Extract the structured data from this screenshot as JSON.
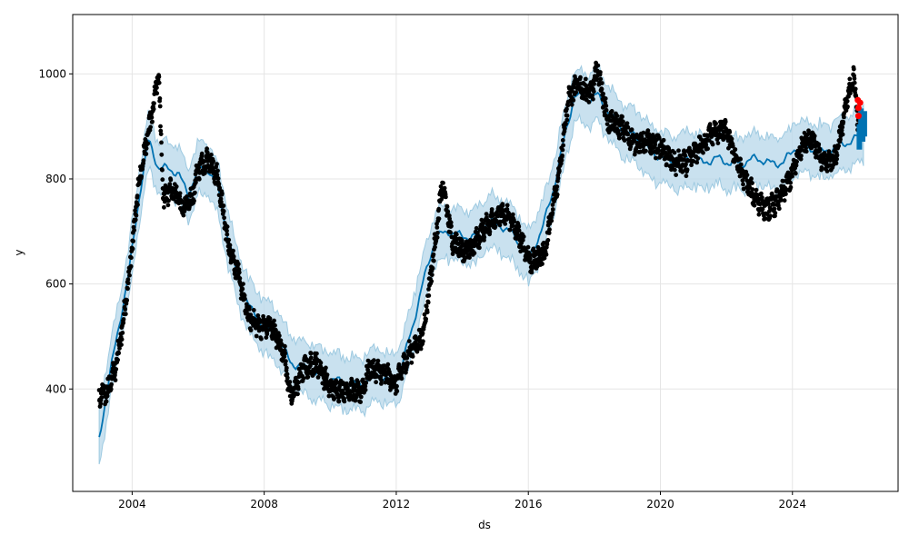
{
  "chart_data": {
    "type": "line",
    "title": "",
    "xlabel": "ds",
    "ylabel": "y",
    "xlim": [
      2002.2,
      2027.2
    ],
    "ylim": [
      205,
      1113
    ],
    "x_ticks": [
      2004,
      2008,
      2012,
      2016,
      2020,
      2024
    ],
    "x_tick_labels": [
      "2004",
      "2008",
      "2012",
      "2016",
      "2020",
      "2024"
    ],
    "y_ticks": [
      400,
      600,
      800,
      1000
    ],
    "y_tick_labels": [
      "400",
      "600",
      "800",
      "1000"
    ],
    "grid": true,
    "colors": {
      "forecast": "#0072B2",
      "band": "#b7d7ea",
      "observed": "#000000",
      "highlight": "#ff0000",
      "grid": "#e5e5e5"
    },
    "observed_anchors": [
      [
        2003.0,
        385
      ],
      [
        2003.2,
        390
      ],
      [
        2003.5,
        440
      ],
      [
        2003.8,
        560
      ],
      [
        2004.0,
        670
      ],
      [
        2004.2,
        790
      ],
      [
        2004.4,
        860
      ],
      [
        2004.6,
        920
      ],
      [
        2004.8,
        1000
      ],
      [
        2004.95,
        760
      ],
      [
        2005.2,
        780
      ],
      [
        2005.5,
        750
      ],
      [
        2005.8,
        760
      ],
      [
        2006.0,
        820
      ],
      [
        2006.3,
        840
      ],
      [
        2006.6,
        800
      ],
      [
        2006.9,
        680
      ],
      [
        2007.2,
        620
      ],
      [
        2007.5,
        540
      ],
      [
        2007.8,
        520
      ],
      [
        2008.2,
        520
      ],
      [
        2008.6,
        470
      ],
      [
        2008.8,
        380
      ],
      [
        2009.2,
        440
      ],
      [
        2009.6,
        450
      ],
      [
        2010.0,
        400
      ],
      [
        2010.5,
        400
      ],
      [
        2010.9,
        390
      ],
      [
        2011.2,
        440
      ],
      [
        2011.6,
        430
      ],
      [
        2012.0,
        410
      ],
      [
        2012.4,
        470
      ],
      [
        2012.8,
        500
      ],
      [
        2013.1,
        640
      ],
      [
        2013.4,
        790
      ],
      [
        2013.7,
        680
      ],
      [
        2014.2,
        660
      ],
      [
        2014.6,
        700
      ],
      [
        2015.0,
        730
      ],
      [
        2015.4,
        730
      ],
      [
        2015.8,
        680
      ],
      [
        2016.1,
        640
      ],
      [
        2016.5,
        660
      ],
      [
        2016.9,
        800
      ],
      [
        2017.2,
        950
      ],
      [
        2017.5,
        980
      ],
      [
        2017.9,
        960
      ],
      [
        2018.1,
        1010
      ],
      [
        2018.4,
        910
      ],
      [
        2018.8,
        900
      ],
      [
        2019.2,
        870
      ],
      [
        2019.6,
        870
      ],
      [
        2020.0,
        860
      ],
      [
        2020.4,
        830
      ],
      [
        2020.8,
        830
      ],
      [
        2021.2,
        860
      ],
      [
        2021.6,
        890
      ],
      [
        2022.0,
        890
      ],
      [
        2022.4,
        820
      ],
      [
        2022.8,
        770
      ],
      [
        2023.2,
        740
      ],
      [
        2023.6,
        760
      ],
      [
        2024.0,
        810
      ],
      [
        2024.3,
        870
      ],
      [
        2024.6,
        880
      ],
      [
        2024.9,
        830
      ],
      [
        2025.3,
        840
      ],
      [
        2025.6,
        930
      ],
      [
        2025.85,
        1000
      ],
      [
        2026.0,
        900
      ]
    ],
    "forecast_anchors": [
      [
        2003.0,
        305
      ],
      [
        2003.3,
        420
      ],
      [
        2003.6,
        520
      ],
      [
        2003.9,
        620
      ],
      [
        2004.2,
        760
      ],
      [
        2004.5,
        875
      ],
      [
        2004.8,
        820
      ],
      [
        2005.1,
        820
      ],
      [
        2005.4,
        810
      ],
      [
        2005.7,
        770
      ],
      [
        2006.0,
        820
      ],
      [
        2006.3,
        820
      ],
      [
        2006.6,
        780
      ],
      [
        2006.9,
        690
      ],
      [
        2007.2,
        610
      ],
      [
        2007.6,
        550
      ],
      [
        2008.0,
        520
      ],
      [
        2008.4,
        500
      ],
      [
        2008.8,
        450
      ],
      [
        2009.2,
        440
      ],
      [
        2009.6,
        430
      ],
      [
        2010.0,
        420
      ],
      [
        2010.5,
        410
      ],
      [
        2011.0,
        410
      ],
      [
        2011.4,
        430
      ],
      [
        2011.8,
        415
      ],
      [
        2012.1,
        430
      ],
      [
        2012.5,
        520
      ],
      [
        2012.8,
        600
      ],
      [
        2013.2,
        690
      ],
      [
        2013.6,
        700
      ],
      [
        2014.0,
        690
      ],
      [
        2014.4,
        690
      ],
      [
        2014.8,
        720
      ],
      [
        2015.2,
        710
      ],
      [
        2015.6,
        690
      ],
      [
        2016.0,
        650
      ],
      [
        2016.4,
        700
      ],
      [
        2016.8,
        790
      ],
      [
        2017.1,
        880
      ],
      [
        2017.4,
        960
      ],
      [
        2017.8,
        950
      ],
      [
        2018.1,
        960
      ],
      [
        2018.5,
        920
      ],
      [
        2018.9,
        890
      ],
      [
        2019.3,
        880
      ],
      [
        2019.7,
        850
      ],
      [
        2020.1,
        840
      ],
      [
        2020.5,
        830
      ],
      [
        2020.9,
        840
      ],
      [
        2021.3,
        830
      ],
      [
        2021.7,
        840
      ],
      [
        2022.1,
        830
      ],
      [
        2022.5,
        830
      ],
      [
        2022.9,
        840
      ],
      [
        2023.3,
        830
      ],
      [
        2023.7,
        830
      ],
      [
        2024.1,
        860
      ],
      [
        2024.5,
        860
      ],
      [
        2024.9,
        850
      ],
      [
        2025.3,
        860
      ],
      [
        2025.7,
        870
      ],
      [
        2026.0,
        880
      ],
      [
        2026.15,
        890
      ]
    ],
    "band_halfwidth": 50,
    "highlight_points": [
      [
        2026.0,
        920
      ],
      [
        2026.0,
        935
      ],
      [
        2026.05,
        945
      ],
      [
        2025.98,
        950
      ]
    ],
    "forecast_tail": [
      [
        2026.0,
        880
      ],
      [
        2026.05,
        910
      ],
      [
        2026.1,
        895
      ],
      [
        2026.15,
        905
      ]
    ]
  }
}
